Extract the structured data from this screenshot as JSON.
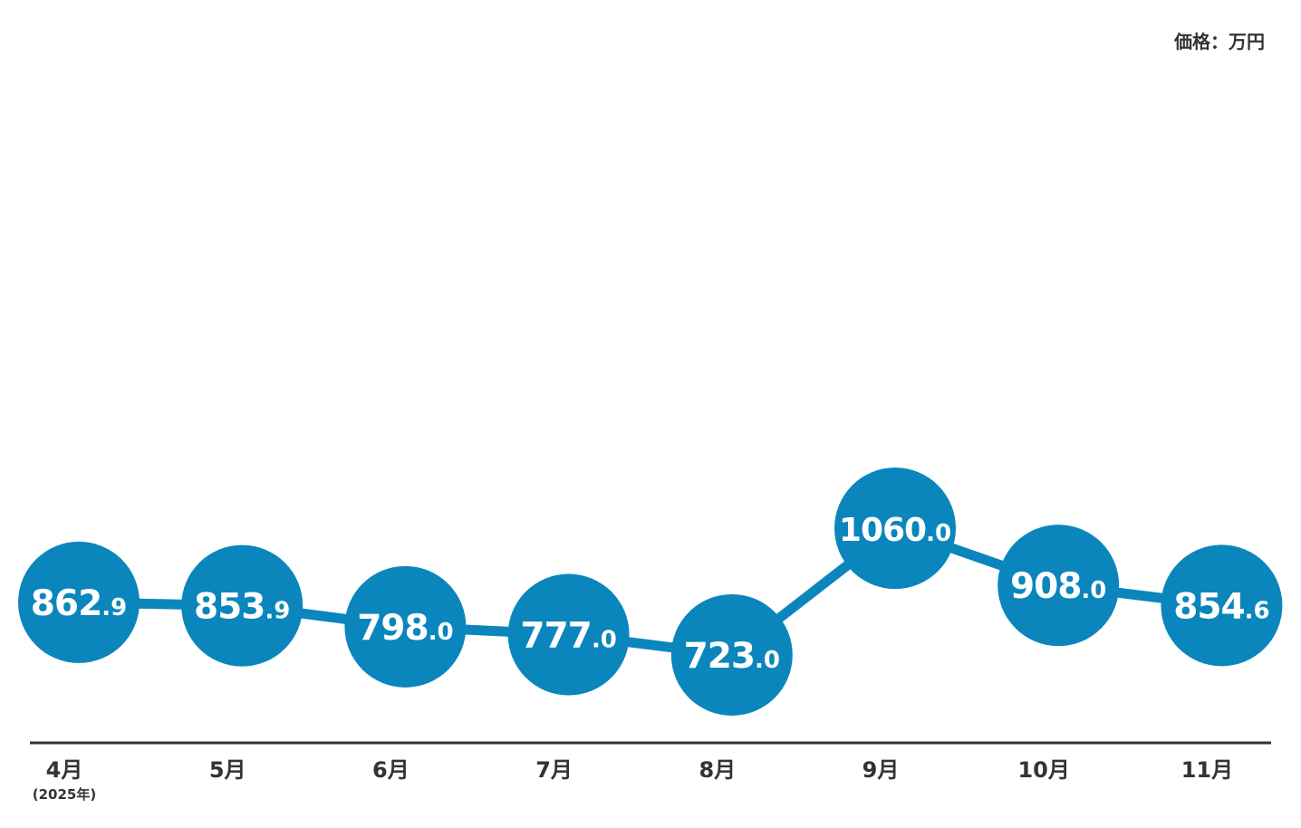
{
  "unit_label": "価格：万円",
  "colors": {
    "accent": "#0a86bd",
    "axis": "#333333",
    "text": "#333333",
    "label": "#ffffff"
  },
  "chart_data": {
    "type": "line",
    "categories": [
      "4月",
      "5月",
      "6月",
      "7月",
      "8月",
      "9月",
      "10月",
      "11月"
    ],
    "category_note": {
      "index": 0,
      "text": "(2025年)"
    },
    "values": [
      862.9,
      853.9,
      798.0,
      777.0,
      723.0,
      1060.0,
      908.0,
      854.6
    ],
    "value_labels": [
      [
        "862",
        ".9"
      ],
      [
        "853",
        ".9"
      ],
      [
        "798",
        ".0"
      ],
      [
        "777",
        ".0"
      ],
      [
        "723",
        ".0"
      ],
      [
        "1060",
        ".0"
      ],
      [
        "908",
        ".0"
      ],
      [
        "854",
        ".6"
      ]
    ],
    "title": "",
    "xlabel": "",
    "ylabel": "",
    "unit": "万円",
    "markers": "circle-with-value",
    "grid": false,
    "legend": "none"
  }
}
